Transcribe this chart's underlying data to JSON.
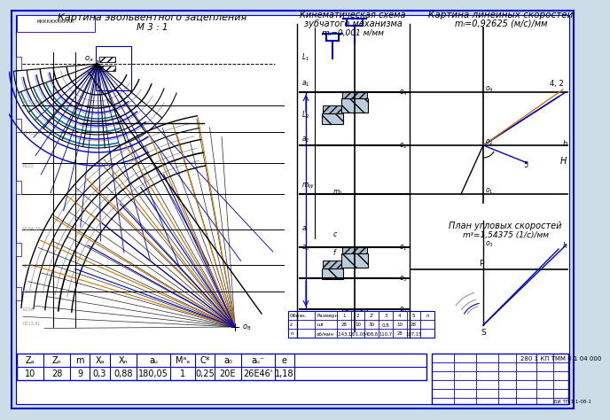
{
  "bg_color": "#ccdde8",
  "border_color": "#0000bb",
  "title1": "Картина эвольвентного зацепления",
  "title1_sub": "М 3 : 1",
  "title2_l1": "Кинематическая схема",
  "title2_l2": "зубчатого механизма",
  "title2_l3": "mᵢ=0,001 м/мм",
  "title3_l1": "Картина линейных скоростей",
  "title3_l2": "mₗ=0,92625 (м/с)/мм",
  "title4_l1": "План угловых скоростей",
  "title4_l2": "mᵡ=1,54375 (1/с)/мм",
  "stamp_text": "280 1 КП ТММ 0 1 04 000",
  "table_headers": [
    "Zₐ",
    "Zₙ",
    "m",
    "Xₐ",
    "Xₙ",
    "aᵤ",
    "Mᵃₐ",
    "C*",
    "a₀",
    "aᵤ⁻",
    "e"
  ],
  "table_values": [
    "10",
    "28",
    "9",
    "0,3",
    "0,88",
    "180,05",
    "1",
    "0,25",
    "20E",
    "26E46'",
    "1,18"
  ],
  "bk": "#000000",
  "bl": "#0000cc",
  "or": "#cc7700",
  "cy": "#007788",
  "gr": "#999999",
  "wh": "#ffffff"
}
